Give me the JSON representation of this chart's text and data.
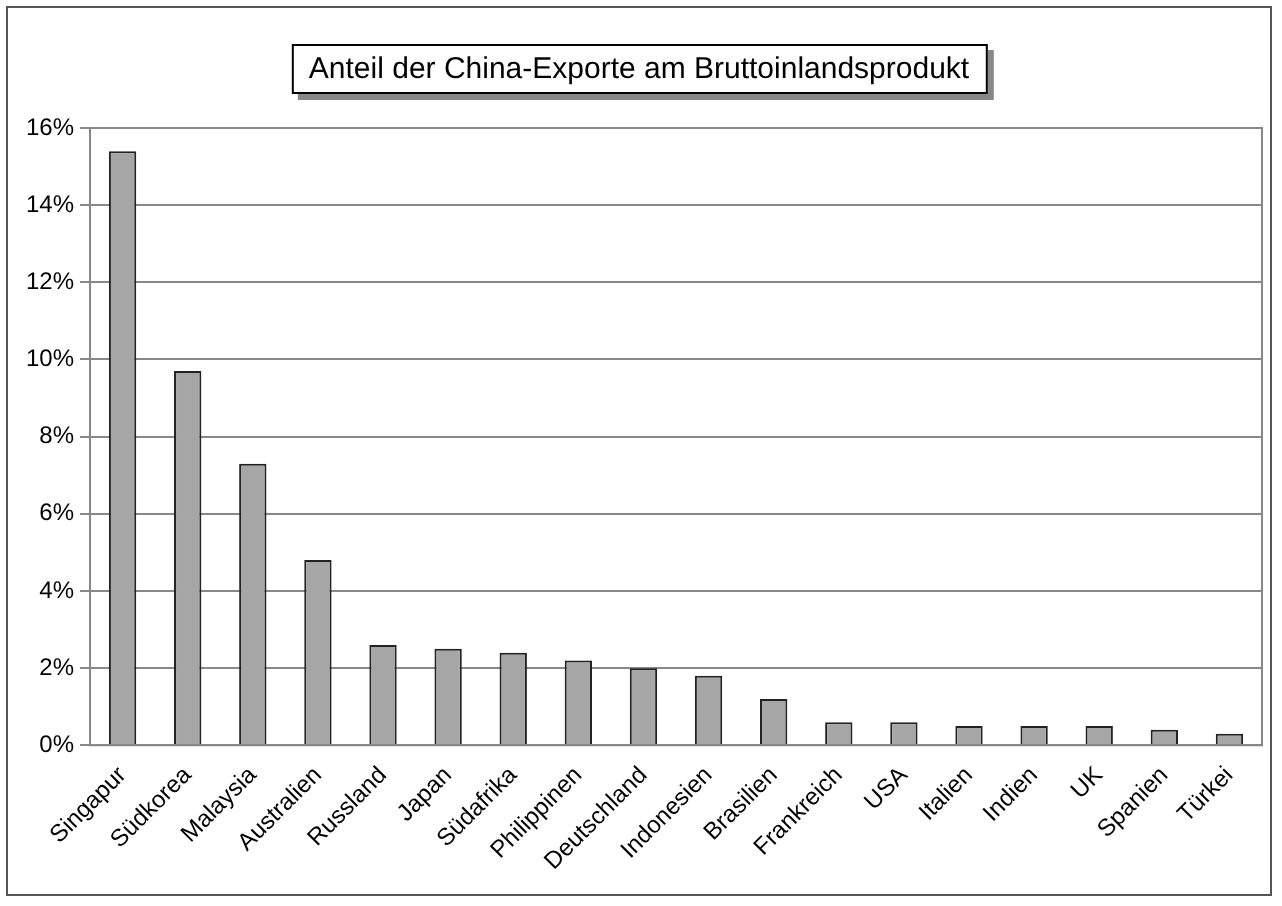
{
  "chart_data": {
    "type": "bar",
    "title": "Anteil der China-Exporte am Bruttoinlandsprodukt",
    "categories": [
      "Singapur",
      "Südkorea",
      "Malaysia",
      "Australien",
      "Russland",
      "Japan",
      "Südafrika",
      "Philippinen",
      "Deutschland",
      "Indonesien",
      "Brasilien",
      "Frankreich",
      "USA",
      "Italien",
      "Indien",
      "UK",
      "Spanien",
      "Türkei"
    ],
    "values": [
      15.4,
      9.7,
      7.3,
      4.8,
      2.6,
      2.5,
      2.4,
      2.2,
      2.0,
      1.8,
      1.2,
      0.6,
      0.6,
      0.5,
      0.5,
      0.5,
      0.4,
      0.3
    ],
    "color": "#a6a6a6",
    "ylim": [
      0,
      16
    ],
    "yticks": [
      {
        "value": 0,
        "label": "0%"
      },
      {
        "value": 2,
        "label": "2%"
      },
      {
        "value": 4,
        "label": "4%"
      },
      {
        "value": 6,
        "label": "6%"
      },
      {
        "value": 8,
        "label": "8%"
      },
      {
        "value": 10,
        "label": "10%"
      },
      {
        "value": 12,
        "label": "12%"
      },
      {
        "value": 14,
        "label": "14%"
      },
      {
        "value": 16,
        "label": "16%"
      }
    ],
    "grid": "y",
    "legend": false
  }
}
